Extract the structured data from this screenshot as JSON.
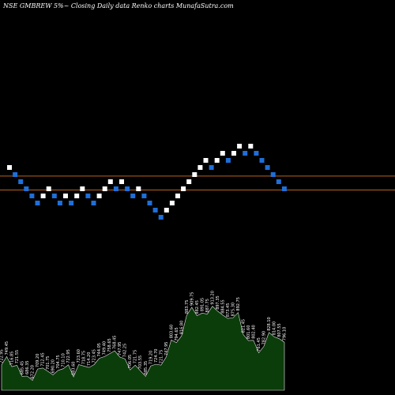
{
  "chart_data": {
    "type": "renko",
    "title": "NSE GMBREW 5%~  Closing Daily data  Renko  charts MunafaSutra.com",
    "reference_levels": [
      796.5,
      743.5
    ],
    "colors": {
      "background": "#000000",
      "up_brick": "#ffffff",
      "down_brick": "#1e6fd9",
      "reference_line": "#b8601e",
      "volume_area": "#0b3d0b",
      "volume_outline": "#e8e8e8"
    },
    "bricks": [
      {
        "dir": "up",
        "level": 829
      },
      {
        "dir": "down",
        "level": 802
      },
      {
        "dir": "down",
        "level": 775
      },
      {
        "dir": "down",
        "level": 748
      },
      {
        "dir": "down",
        "level": 721
      },
      {
        "dir": "down",
        "level": 694
      },
      {
        "dir": "up",
        "level": 721
      },
      {
        "dir": "up",
        "level": 748
      },
      {
        "dir": "down",
        "level": 721
      },
      {
        "dir": "down",
        "level": 694
      },
      {
        "dir": "up",
        "level": 721
      },
      {
        "dir": "down",
        "level": 694
      },
      {
        "dir": "up",
        "level": 721
      },
      {
        "dir": "up",
        "level": 748
      },
      {
        "dir": "down",
        "level": 721
      },
      {
        "dir": "down",
        "level": 694
      },
      {
        "dir": "up",
        "level": 721
      },
      {
        "dir": "up",
        "level": 748
      },
      {
        "dir": "up",
        "level": 775
      },
      {
        "dir": "down",
        "level": 748
      },
      {
        "dir": "up",
        "level": 775
      },
      {
        "dir": "down",
        "level": 748
      },
      {
        "dir": "down",
        "level": 721
      },
      {
        "dir": "up",
        "level": 748
      },
      {
        "dir": "down",
        "level": 721
      },
      {
        "dir": "down",
        "level": 694
      },
      {
        "dir": "down",
        "level": 667
      },
      {
        "dir": "down",
        "level": 640
      },
      {
        "dir": "up",
        "level": 667
      },
      {
        "dir": "up",
        "level": 694
      },
      {
        "dir": "up",
        "level": 721
      },
      {
        "dir": "up",
        "level": 748
      },
      {
        "dir": "up",
        "level": 775
      },
      {
        "dir": "up",
        "level": 802
      },
      {
        "dir": "up",
        "level": 829
      },
      {
        "dir": "up",
        "level": 856
      },
      {
        "dir": "down",
        "level": 829
      },
      {
        "dir": "up",
        "level": 856
      },
      {
        "dir": "up",
        "level": 883
      },
      {
        "dir": "down",
        "level": 856
      },
      {
        "dir": "up",
        "level": 883
      },
      {
        "dir": "up",
        "level": 910
      },
      {
        "dir": "down",
        "level": 883
      },
      {
        "dir": "up",
        "level": 910
      },
      {
        "dir": "down",
        "level": 883
      },
      {
        "dir": "down",
        "level": 856
      },
      {
        "dir": "down",
        "level": 829
      },
      {
        "dir": "down",
        "level": 802
      },
      {
        "dir": "down",
        "level": 775
      },
      {
        "dir": "down",
        "level": 748
      }
    ],
    "volume_labels": [
      "722.95",
      "749.45",
      "716.85",
      "721.55",
      "685.45",
      "686.35",
      "672.20",
      "709.20",
      "712.45",
      "701.75",
      "690.20",
      "704.75",
      "710.10",
      "722.95",
      "683.60",
      "723.60",
      "718.75",
      "714.20",
      "723.45",
      "744.05",
      "749.40",
      "758.65",
      "768.45",
      "747.95",
      "742.25",
      "706.05",
      "721.75",
      "703.55",
      "685.35",
      "719.20",
      "724.70",
      "721.75",
      "747.95",
      "803.60",
      "794.65",
      "816.80",
      "883.75",
      "909.75",
      "882.45",
      "891.05",
      "887.75",
      "913.20",
      "897.35",
      "884.55",
      "873.45",
      "875.30",
      "892.75",
      "821.45",
      "801.60",
      "802.40",
      "761.45",
      "782.90",
      "828.10",
      "814.00",
      "807.55",
      "796.10"
    ]
  }
}
